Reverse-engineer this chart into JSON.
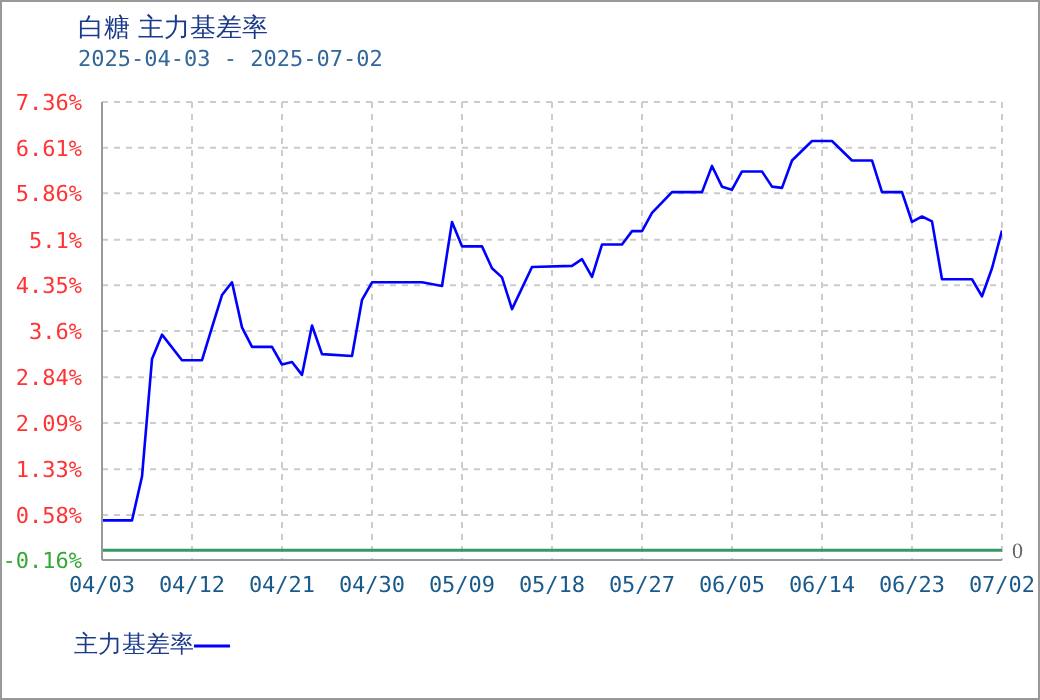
{
  "chart_data": {
    "type": "line",
    "title": "白糖 主力基差率",
    "subtitle": "2025-04-03 - 2025-07-02",
    "x": [
      "2025-04-03",
      "2025-04-06",
      "2025-04-07",
      "2025-04-08",
      "2025-04-09",
      "2025-04-11",
      "2025-04-13",
      "2025-04-14",
      "2025-04-15",
      "2025-04-16",
      "2025-04-17",
      "2025-04-18",
      "2025-04-20",
      "2025-04-21",
      "2025-04-22",
      "2025-04-23",
      "2025-04-24",
      "2025-04-25",
      "2025-04-28",
      "2025-04-29",
      "2025-04-30",
      "2025-05-05",
      "2025-05-07",
      "2025-05-08",
      "2025-05-09",
      "2025-05-11",
      "2025-05-12",
      "2025-05-13",
      "2025-05-14",
      "2025-05-16",
      "2025-05-20",
      "2025-05-21",
      "2025-05-22",
      "2025-05-23",
      "2025-05-25",
      "2025-05-26",
      "2025-05-27",
      "2025-05-28",
      "2025-05-30",
      "2025-06-02",
      "2025-06-03",
      "2025-06-04",
      "2025-06-05",
      "2025-06-06",
      "2025-06-08",
      "2025-06-09",
      "2025-06-10",
      "2025-06-11",
      "2025-06-13",
      "2025-06-15",
      "2025-06-17",
      "2025-06-19",
      "2025-06-20",
      "2025-06-22",
      "2025-06-23",
      "2025-06-24",
      "2025-06-25",
      "2025-06-26",
      "2025-06-29",
      "2025-06-30",
      "2025-07-01",
      "2025-07-02"
    ],
    "series": [
      {
        "name": "主力基差率",
        "color": "#0000ff",
        "values": [
          0.49,
          0.49,
          1.21,
          3.14,
          3.54,
          3.12,
          3.12,
          3.66,
          4.19,
          4.4,
          3.66,
          3.34,
          3.34,
          3.05,
          3.09,
          2.88,
          3.69,
          3.22,
          3.19,
          4.11,
          4.4,
          4.4,
          4.34,
          5.39,
          4.99,
          4.99,
          4.63,
          4.48,
          3.96,
          4.65,
          4.67,
          4.78,
          4.49,
          5.02,
          5.02,
          5.24,
          5.24,
          5.54,
          5.88,
          5.88,
          6.31,
          5.97,
          5.92,
          6.22,
          6.22,
          5.97,
          5.95,
          6.4,
          6.72,
          6.72,
          6.4,
          6.4,
          5.88,
          5.88,
          5.39,
          5.48,
          5.4,
          4.45,
          4.45,
          4.17,
          4.63,
          5.25
        ]
      }
    ],
    "xlim": [
      "2025-04-03",
      "2025-07-02"
    ],
    "xticks": [
      {
        "value": "2025-04-03",
        "label": "04/03"
      },
      {
        "value": "2025-04-12",
        "label": "04/12"
      },
      {
        "value": "2025-04-21",
        "label": "04/21"
      },
      {
        "value": "2025-04-30",
        "label": "04/30"
      },
      {
        "value": "2025-05-09",
        "label": "05/09"
      },
      {
        "value": "2025-05-18",
        "label": "05/18"
      },
      {
        "value": "2025-05-27",
        "label": "05/27"
      },
      {
        "value": "2025-06-05",
        "label": "06/05"
      },
      {
        "value": "2025-06-14",
        "label": "06/14"
      },
      {
        "value": "2025-06-23",
        "label": "06/23"
      },
      {
        "value": "2025-07-02",
        "label": "07/02"
      }
    ],
    "ylim": [
      -0.16,
      7.36
    ],
    "yticks": [
      {
        "value": -0.16,
        "label": "-0.16%"
      },
      {
        "value": 0.58,
        "label": "0.58%"
      },
      {
        "value": 1.33,
        "label": "1.33%"
      },
      {
        "value": 2.09,
        "label": "2.09%"
      },
      {
        "value": 2.84,
        "label": "2.84%"
      },
      {
        "value": 3.6,
        "label": "3.6%"
      },
      {
        "value": 4.35,
        "label": "4.35%"
      },
      {
        "value": 5.1,
        "label": "5.1%"
      },
      {
        "value": 5.86,
        "label": "5.86%"
      },
      {
        "value": 6.61,
        "label": "6.61%"
      },
      {
        "value": 7.36,
        "label": "7.36%"
      }
    ],
    "ref_lines": [
      {
        "axis": "y",
        "value": 0,
        "label": "0",
        "color": "#339966"
      }
    ],
    "grid": true,
    "legend": "bottom",
    "marker": "none",
    "line_style": "solid"
  }
}
